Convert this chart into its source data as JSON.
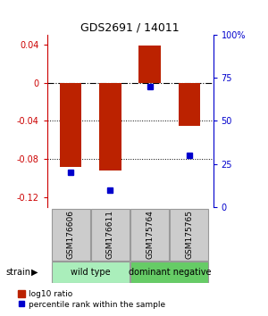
{
  "title": "GDS2691 / 14011",
  "samples": [
    "GSM176606",
    "GSM176611",
    "GSM175764",
    "GSM175765"
  ],
  "log10_ratio": [
    -0.088,
    -0.092,
    0.039,
    -0.045
  ],
  "percentile_rank": [
    20,
    10,
    70,
    30
  ],
  "groups": [
    {
      "name": "wild type",
      "indices": [
        0,
        1
      ],
      "color": "#aaeebb"
    },
    {
      "name": "dominant negative",
      "indices": [
        2,
        3
      ],
      "color": "#66cc66"
    }
  ],
  "ylim_left": [
    -0.13,
    0.05
  ],
  "ylim_right": [
    0,
    100
  ],
  "yticks_left": [
    -0.12,
    -0.08,
    -0.04,
    0.0,
    0.04
  ],
  "yticks_right": [
    0,
    25,
    50,
    75,
    100
  ],
  "ytick_labels_left": [
    "-0.12",
    "-0.08",
    "-0.04",
    "0",
    "0.04"
  ],
  "ytick_labels_right": [
    "0",
    "25",
    "50",
    "75",
    "100%"
  ],
  "bar_color": "#BB2200",
  "dot_color": "#0000CC",
  "left_axis_color": "#CC0000",
  "right_axis_color": "#0000CC",
  "background_color": "#ffffff",
  "strain_label": "strain",
  "legend_bar_label": "log10 ratio",
  "legend_dot_label": "percentile rank within the sample"
}
